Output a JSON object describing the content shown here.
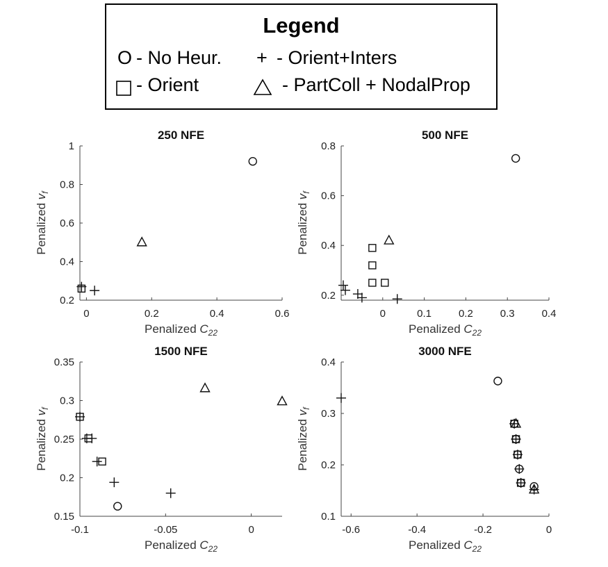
{
  "legend": {
    "title": "Legend",
    "entries": [
      {
        "symbol": "O",
        "label": "- No Heur."
      },
      {
        "symbol": "+",
        "label": "- Orient+Inters"
      },
      {
        "symbol": "square-marker",
        "label": "- Orient"
      },
      {
        "symbol": "triangle-marker",
        "label": "- PartColl + NodalProp"
      }
    ]
  },
  "chart_data": [
    {
      "type": "scatter",
      "title": "250 NFE",
      "xlabel": "Penalized C22",
      "ylabel": "Penalized vf",
      "xlim": [
        -0.02,
        0.6
      ],
      "ylim": [
        0.2,
        1.0
      ],
      "xticks": [
        0,
        0.2,
        0.4,
        0.6
      ],
      "xtick_labels": [
        "0",
        "0.2",
        "0.4",
        "0.6"
      ],
      "yticks": [
        0.2,
        0.4,
        0.6,
        0.8,
        1.0
      ],
      "ytick_labels": [
        "0.2",
        "0.4",
        "0.6",
        "0.8",
        "1"
      ],
      "series": [
        {
          "marker": "circle",
          "points": [
            [
              0.51,
              0.92
            ]
          ]
        },
        {
          "marker": "plus",
          "points": [
            [
              -0.015,
              0.27
            ],
            [
              0.025,
              0.25
            ]
          ]
        },
        {
          "marker": "square",
          "points": [
            [
              -0.015,
              0.26
            ]
          ]
        },
        {
          "marker": "triangle",
          "points": [
            [
              0.17,
              0.5
            ]
          ]
        }
      ]
    },
    {
      "type": "scatter",
      "title": "500 NFE",
      "xlabel": "Penalized C22",
      "ylabel": "Penalized vf",
      "xlim": [
        -0.1,
        0.4
      ],
      "ylim": [
        0.18,
        0.8
      ],
      "xticks": [
        0,
        0.1,
        0.2,
        0.3,
        0.4
      ],
      "xtick_labels": [
        "0",
        "0.1",
        "0.2",
        "0.3",
        "0.4"
      ],
      "yticks": [
        0.2,
        0.4,
        0.6,
        0.8
      ],
      "ytick_labels": [
        "0.2",
        "0.4",
        "0.6",
        "0.8"
      ],
      "series": [
        {
          "marker": "circle",
          "points": [
            [
              0.32,
              0.75
            ]
          ]
        },
        {
          "marker": "plus",
          "points": [
            [
              -0.095,
              0.24
            ],
            [
              -0.09,
              0.22
            ],
            [
              -0.06,
              0.205
            ],
            [
              -0.05,
              0.19
            ],
            [
              0.035,
              0.185
            ]
          ]
        },
        {
          "marker": "square",
          "points": [
            [
              -0.025,
              0.39
            ],
            [
              -0.025,
              0.32
            ],
            [
              -0.025,
              0.25
            ],
            [
              0.005,
              0.25
            ]
          ]
        },
        {
          "marker": "triangle",
          "points": [
            [
              0.015,
              0.42
            ]
          ]
        }
      ]
    },
    {
      "type": "scatter",
      "title": "1500 NFE",
      "xlabel": "Penalized C22",
      "ylabel": "Penalized vf",
      "xlim": [
        -0.1,
        0.018
      ],
      "ylim": [
        0.15,
        0.35
      ],
      "xticks": [
        -0.1,
        -0.05,
        0
      ],
      "xtick_labels": [
        "-0.1",
        "-0.05",
        "0"
      ],
      "yticks": [
        0.15,
        0.2,
        0.25,
        0.3,
        0.35
      ],
      "ytick_labels": [
        "0.15",
        "0.2",
        "0.25",
        "0.3",
        "0.35"
      ],
      "series": [
        {
          "marker": "circle",
          "points": [
            [
              -0.078,
              0.163
            ]
          ]
        },
        {
          "marker": "plus",
          "points": [
            [
              -0.1,
              0.279
            ],
            [
              -0.096,
              0.251
            ],
            [
              -0.093,
              0.251
            ],
            [
              -0.09,
              0.221
            ],
            [
              -0.08,
              0.194
            ],
            [
              -0.047,
              0.18
            ]
          ]
        },
        {
          "marker": "square",
          "points": [
            [
              -0.1,
              0.279
            ],
            [
              -0.095,
              0.251
            ],
            [
              -0.087,
              0.221
            ]
          ]
        },
        {
          "marker": "triangle",
          "points": [
            [
              -0.027,
              0.316
            ],
            [
              0.018,
              0.299
            ]
          ]
        }
      ]
    },
    {
      "type": "scatter",
      "title": "3000 NFE",
      "xlabel": "Penalized C22",
      "ylabel": "Penalized vf",
      "xlim": [
        -0.63,
        0
      ],
      "ylim": [
        0.1,
        0.4
      ],
      "xticks": [
        -0.6,
        -0.4,
        -0.2,
        0
      ],
      "xtick_labels": [
        "-0.6",
        "-0.4",
        "-0.2",
        "0"
      ],
      "yticks": [
        0.1,
        0.2,
        0.3,
        0.4
      ],
      "ytick_labels": [
        "0.1",
        "0.2",
        "0.3",
        "0.4"
      ],
      "series": [
        {
          "marker": "circle",
          "points": [
            [
              -0.155,
              0.363
            ],
            [
              -0.105,
              0.28
            ],
            [
              -0.1,
              0.25
            ],
            [
              -0.095,
              0.22
            ],
            [
              -0.09,
              0.192
            ],
            [
              -0.085,
              0.165
            ],
            [
              -0.045,
              0.158
            ]
          ]
        },
        {
          "marker": "plus",
          "points": [
            [
              -0.63,
              0.33
            ],
            [
              -0.105,
              0.28
            ],
            [
              -0.1,
              0.25
            ],
            [
              -0.095,
              0.22
            ],
            [
              -0.09,
              0.192
            ],
            [
              -0.085,
              0.165
            ],
            [
              -0.045,
              0.152
            ]
          ]
        },
        {
          "marker": "square",
          "points": [
            [
              -0.105,
              0.28
            ],
            [
              -0.1,
              0.25
            ],
            [
              -0.095,
              0.22
            ],
            [
              -0.085,
              0.165
            ]
          ]
        },
        {
          "marker": "triangle",
          "points": [
            [
              -0.1,
              0.28
            ],
            [
              -0.045,
              0.152
            ]
          ]
        }
      ]
    }
  ]
}
